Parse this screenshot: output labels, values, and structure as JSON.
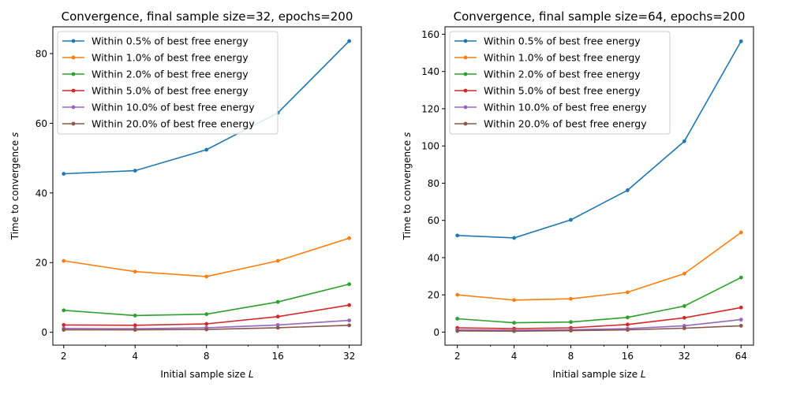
{
  "chart_data": [
    {
      "type": "line",
      "title": "Convergence, final sample size=32, epochs=200",
      "xlabel": "Initial sample size L",
      "ylabel": "Time to convergence s",
      "x_scale": "log2",
      "x": [
        2,
        4,
        8,
        16,
        32
      ],
      "x_tick_labels": [
        "2",
        "4",
        "8",
        "16",
        "32"
      ],
      "xlim": [
        1.8,
        36
      ],
      "ylim": [
        -3.7,
        87.7
      ],
      "y_ticks": [
        0,
        20,
        40,
        60,
        80
      ],
      "y_tick_labels": [
        "0",
        "20",
        "40",
        "60",
        "80"
      ],
      "legend_position": "upper-left",
      "grid": false,
      "series": [
        {
          "name": "Within 0.5% of best free energy",
          "color": "#1f77b4",
          "values": [
            45.5,
            46.4,
            52.4,
            63.0,
            83.6
          ]
        },
        {
          "name": "Within 1.0% of best free energy",
          "color": "#ff7f0e",
          "values": [
            20.5,
            17.4,
            16.0,
            20.5,
            27.0
          ]
        },
        {
          "name": "Within 2.0% of best free energy",
          "color": "#2ca02c",
          "values": [
            6.3,
            4.8,
            5.2,
            8.7,
            13.8
          ]
        },
        {
          "name": "Within 5.0% of best free energy",
          "color": "#d62728",
          "values": [
            2.1,
            2.0,
            2.4,
            4.5,
            7.8
          ]
        },
        {
          "name": "Within 10.0% of best free energy",
          "color": "#9467bd",
          "values": [
            1.1,
            1.0,
            1.3,
            2.1,
            3.4
          ]
        },
        {
          "name": "Within 20.0% of best free energy",
          "color": "#8c564b",
          "values": [
            0.7,
            0.7,
            0.8,
            1.3,
            2.0
          ]
        }
      ]
    },
    {
      "type": "line",
      "title": "Convergence, final sample size=64, epochs=200",
      "xlabel": "Initial sample size L",
      "ylabel": "Time to convergence s",
      "x_scale": "log2",
      "x": [
        2,
        4,
        8,
        16,
        32,
        64
      ],
      "x_tick_labels": [
        "2",
        "4",
        "8",
        "16",
        "32",
        "64"
      ],
      "xlim": [
        1.72,
        74.5
      ],
      "ylim": [
        -7.0,
        164.0
      ],
      "y_ticks": [
        0,
        20,
        40,
        60,
        80,
        100,
        120,
        140,
        160
      ],
      "y_tick_labels": [
        "0",
        "20",
        "40",
        "60",
        "80",
        "100",
        "120",
        "140",
        "160"
      ],
      "legend_position": "upper-left",
      "grid": false,
      "series": [
        {
          "name": "Within 0.5% of best free energy",
          "color": "#1f77b4",
          "values": [
            51.9,
            50.6,
            60.3,
            76.2,
            102.5,
            156.2
          ]
        },
        {
          "name": "Within 1.0% of best free energy",
          "color": "#ff7f0e",
          "values": [
            20.0,
            17.2,
            17.9,
            21.4,
            31.4,
            53.5
          ]
        },
        {
          "name": "Within 2.0% of best free energy",
          "color": "#2ca02c",
          "values": [
            7.2,
            5.0,
            5.4,
            7.9,
            14.0,
            29.3
          ]
        },
        {
          "name": "Within 5.0% of best free energy",
          "color": "#d62728",
          "values": [
            2.3,
            1.9,
            2.3,
            4.1,
            7.7,
            13.2
          ]
        },
        {
          "name": "Within 10.0% of best free energy",
          "color": "#9467bd",
          "values": [
            1.2,
            1.0,
            1.3,
            1.9,
            3.4,
            6.7
          ]
        },
        {
          "name": "Within 20.0% of best free energy",
          "color": "#8c564b",
          "values": [
            0.6,
            0.5,
            0.8,
            1.2,
            2.1,
            3.4
          ]
        }
      ]
    }
  ]
}
